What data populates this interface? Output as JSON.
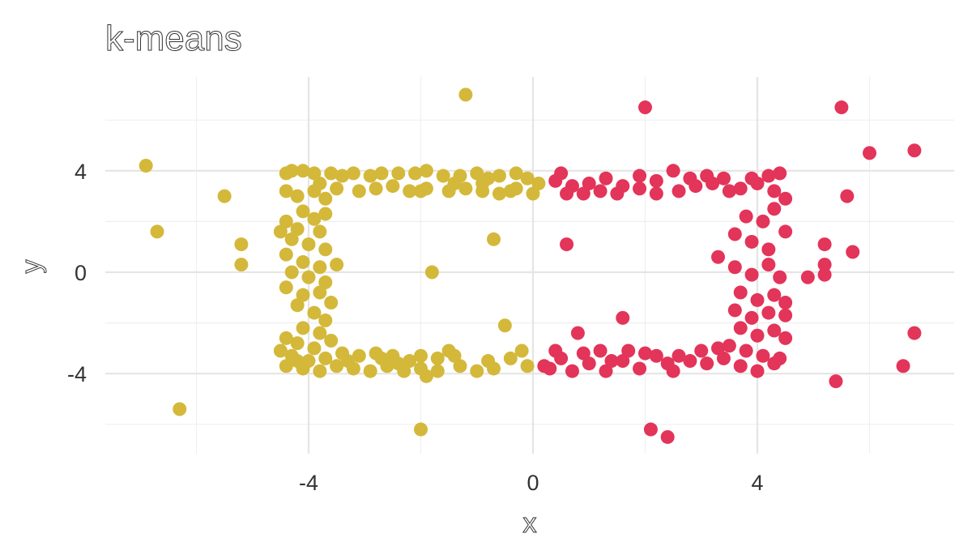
{
  "chart_data": {
    "type": "scatter",
    "title": "k-means",
    "xlabel": "x",
    "ylabel": "y",
    "xlim": [
      -7.5,
      7.5
    ],
    "ylim": [
      -7,
      7.2
    ],
    "x_ticks": [
      -4,
      0,
      4
    ],
    "y_ticks": [
      -4,
      0,
      4
    ],
    "x_minor": [
      -6,
      -2,
      2,
      6
    ],
    "y_minor": [
      -6,
      -2,
      2,
      6
    ],
    "grid": true,
    "legend": "none",
    "series": [
      {
        "color": "#D4B83A",
        "points": [
          [
            -6.9,
            4.2
          ],
          [
            -5.5,
            3.0
          ],
          [
            -6.7,
            1.6
          ],
          [
            -5.2,
            1.1
          ],
          [
            -5.2,
            0.3
          ],
          [
            -6.3,
            -5.4
          ],
          [
            -1.2,
            7.0
          ],
          [
            -1.8,
            0.0
          ],
          [
            -0.7,
            1.3
          ],
          [
            -0.5,
            -2.1
          ],
          [
            -2.0,
            -6.2
          ],
          [
            -4.4,
            3.9
          ],
          [
            -4.3,
            4.0
          ],
          [
            -4.1,
            4.0
          ],
          [
            -3.9,
            3.9
          ],
          [
            -3.6,
            3.9
          ],
          [
            -3.4,
            3.8
          ],
          [
            -3.2,
            3.9
          ],
          [
            -2.9,
            3.8
          ],
          [
            -2.7,
            3.9
          ],
          [
            -2.4,
            3.9
          ],
          [
            -2.1,
            3.9
          ],
          [
            -1.9,
            4.0
          ],
          [
            -1.6,
            3.8
          ],
          [
            -1.3,
            3.8
          ],
          [
            -1.0,
            3.9
          ],
          [
            -0.8,
            3.7
          ],
          [
            -0.6,
            3.8
          ],
          [
            -0.3,
            3.9
          ],
          [
            -0.1,
            3.7
          ],
          [
            -3.8,
            3.5
          ],
          [
            -3.5,
            3.3
          ],
          [
            -3.1,
            3.2
          ],
          [
            -2.8,
            3.3
          ],
          [
            -2.5,
            3.4
          ],
          [
            -2.2,
            3.2
          ],
          [
            -1.9,
            3.3
          ],
          [
            -1.5,
            3.2
          ],
          [
            -1.2,
            3.3
          ],
          [
            -0.9,
            3.2
          ],
          [
            -0.6,
            3.1
          ],
          [
            -0.3,
            3.3
          ],
          [
            0.1,
            3.5
          ],
          [
            -4.4,
            3.2
          ],
          [
            -4.2,
            3.0
          ],
          [
            -3.9,
            3.2
          ],
          [
            -3.7,
            2.9
          ],
          [
            -2.0,
            3.2
          ],
          [
            -1.4,
            3.5
          ],
          [
            -0.9,
            3.5
          ],
          [
            -0.4,
            3.2
          ],
          [
            0.0,
            3.1
          ],
          [
            -4.1,
            2.4
          ],
          [
            -3.9,
            2.1
          ],
          [
            -3.7,
            2.3
          ],
          [
            -4.4,
            2.0
          ],
          [
            -4.2,
            1.7
          ],
          [
            -3.8,
            1.6
          ],
          [
            -4.5,
            1.6
          ],
          [
            -4.3,
            1.3
          ],
          [
            -4.0,
            1.1
          ],
          [
            -3.7,
            0.9
          ],
          [
            -4.4,
            0.7
          ],
          [
            -4.1,
            0.4
          ],
          [
            -3.8,
            0.2
          ],
          [
            -3.5,
            0.3
          ],
          [
            -4.3,
            0.0
          ],
          [
            -4.0,
            -0.2
          ],
          [
            -3.7,
            -0.4
          ],
          [
            -4.4,
            -0.6
          ],
          [
            -4.1,
            -0.9
          ],
          [
            -3.8,
            -0.8
          ],
          [
            -3.6,
            -1.2
          ],
          [
            -4.2,
            -1.3
          ],
          [
            -3.9,
            -1.6
          ],
          [
            -3.7,
            -1.9
          ],
          [
            -4.1,
            -2.2
          ],
          [
            -3.8,
            -2.4
          ],
          [
            -4.4,
            -2.6
          ],
          [
            -4.2,
            -2.8
          ],
          [
            -3.9,
            -3.0
          ],
          [
            -3.6,
            -2.7
          ],
          [
            -4.5,
            -3.1
          ],
          [
            -4.3,
            -3.3
          ],
          [
            -4.0,
            -3.5
          ],
          [
            -3.7,
            -3.4
          ],
          [
            -3.4,
            -3.2
          ],
          [
            -3.1,
            -3.3
          ],
          [
            -2.8,
            -3.2
          ],
          [
            -2.5,
            -3.3
          ],
          [
            -2.2,
            -3.5
          ],
          [
            -2.0,
            -3.3
          ],
          [
            -1.7,
            -3.4
          ],
          [
            -1.4,
            -3.3
          ],
          [
            -4.4,
            -3.7
          ],
          [
            -4.1,
            -3.8
          ],
          [
            -3.8,
            -3.9
          ],
          [
            -3.5,
            -3.7
          ],
          [
            -3.2,
            -3.8
          ],
          [
            -2.9,
            -3.9
          ],
          [
            -2.6,
            -3.7
          ],
          [
            -2.3,
            -3.9
          ],
          [
            -2.0,
            -3.8
          ],
          [
            -1.7,
            -3.9
          ],
          [
            -1.3,
            -3.7
          ],
          [
            -1.0,
            -3.9
          ],
          [
            -0.7,
            -3.8
          ],
          [
            -0.4,
            -3.4
          ],
          [
            -0.2,
            -3.1
          ],
          [
            -0.1,
            -3.7
          ],
          [
            -4.2,
            -3.5
          ],
          [
            -3.3,
            -3.5
          ],
          [
            -2.7,
            -3.4
          ],
          [
            -1.9,
            -4.1
          ],
          [
            -1.5,
            -3.1
          ],
          [
            -0.8,
            -3.5
          ],
          [
            -2.4,
            -3.6
          ]
        ]
      },
      {
        "color": "#E33459",
        "points": [
          [
            2.0,
            6.5
          ],
          [
            5.5,
            6.5
          ],
          [
            6.0,
            4.7
          ],
          [
            6.8,
            4.8
          ],
          [
            5.6,
            3.0
          ],
          [
            5.2,
            1.1
          ],
          [
            5.7,
            0.8
          ],
          [
            5.2,
            0.3
          ],
          [
            4.9,
            -0.2
          ],
          [
            5.2,
            -0.1
          ],
          [
            6.8,
            -2.4
          ],
          [
            6.6,
            -3.7
          ],
          [
            5.4,
            -4.3
          ],
          [
            2.1,
            -6.2
          ],
          [
            2.4,
            -6.5
          ],
          [
            0.6,
            1.1
          ],
          [
            1.6,
            -1.8
          ],
          [
            0.8,
            -2.4
          ],
          [
            0.4,
            3.6
          ],
          [
            0.5,
            3.9
          ],
          [
            0.7,
            3.4
          ],
          [
            1.0,
            3.5
          ],
          [
            1.3,
            3.7
          ],
          [
            1.6,
            3.4
          ],
          [
            1.9,
            3.8
          ],
          [
            2.2,
            3.6
          ],
          [
            2.5,
            4.0
          ],
          [
            2.8,
            3.7
          ],
          [
            3.1,
            3.8
          ],
          [
            3.4,
            3.7
          ],
          [
            3.7,
            3.3
          ],
          [
            3.9,
            3.7
          ],
          [
            4.2,
            3.8
          ],
          [
            4.4,
            3.9
          ],
          [
            0.6,
            3.1
          ],
          [
            0.9,
            3.1
          ],
          [
            1.2,
            3.2
          ],
          [
            1.5,
            3.1
          ],
          [
            1.9,
            3.3
          ],
          [
            2.2,
            3.1
          ],
          [
            2.6,
            3.2
          ],
          [
            2.9,
            3.4
          ],
          [
            3.2,
            3.5
          ],
          [
            3.5,
            3.2
          ],
          [
            4.0,
            3.5
          ],
          [
            4.3,
            3.2
          ],
          [
            3.8,
            2.2
          ],
          [
            4.1,
            2.0
          ],
          [
            4.3,
            2.5
          ],
          [
            4.5,
            2.9
          ],
          [
            3.6,
            1.5
          ],
          [
            3.9,
            1.2
          ],
          [
            4.2,
            0.9
          ],
          [
            4.5,
            1.6
          ],
          [
            3.3,
            0.6
          ],
          [
            3.6,
            0.2
          ],
          [
            3.9,
            -0.1
          ],
          [
            4.2,
            0.3
          ],
          [
            4.4,
            -0.2
          ],
          [
            3.7,
            -0.8
          ],
          [
            4.0,
            -1.1
          ],
          [
            4.3,
            -0.9
          ],
          [
            4.5,
            -1.2
          ],
          [
            3.6,
            -1.5
          ],
          [
            3.9,
            -1.8
          ],
          [
            4.2,
            -1.6
          ],
          [
            4.5,
            -1.7
          ],
          [
            3.7,
            -2.2
          ],
          [
            4.0,
            -2.5
          ],
          [
            4.3,
            -2.3
          ],
          [
            4.5,
            -2.6
          ],
          [
            3.5,
            -2.9
          ],
          [
            3.8,
            -3.1
          ],
          [
            4.1,
            -3.3
          ],
          [
            4.4,
            -3.4
          ],
          [
            0.2,
            -3.7
          ],
          [
            0.5,
            -3.4
          ],
          [
            0.7,
            -3.9
          ],
          [
            1.0,
            -3.6
          ],
          [
            1.3,
            -3.9
          ],
          [
            1.6,
            -3.5
          ],
          [
            1.9,
            -3.8
          ],
          [
            2.2,
            -3.3
          ],
          [
            2.5,
            -3.9
          ],
          [
            2.8,
            -3.5
          ],
          [
            3.1,
            -3.6
          ],
          [
            3.4,
            -3.4
          ],
          [
            3.7,
            -3.7
          ],
          [
            4.0,
            -3.9
          ],
          [
            4.3,
            -3.6
          ],
          [
            0.4,
            -3.1
          ],
          [
            0.9,
            -3.2
          ],
          [
            1.2,
            -3.1
          ],
          [
            1.7,
            -3.1
          ],
          [
            2.0,
            -3.2
          ],
          [
            2.6,
            -3.3
          ],
          [
            3.0,
            -3.1
          ],
          [
            3.3,
            -3.0
          ],
          [
            1.4,
            -3.5
          ],
          [
            2.4,
            -3.6
          ],
          [
            0.3,
            -3.8
          ]
        ]
      }
    ]
  }
}
